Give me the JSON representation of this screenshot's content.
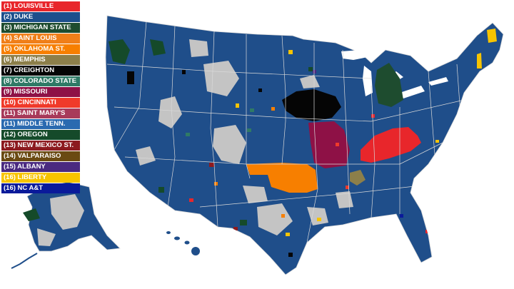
{
  "map": {
    "base_color": "#1f4e8a",
    "other_color": "#c4c4c4",
    "border_color": "#d9d9d9"
  },
  "legend": {
    "items": [
      {
        "label": "(1) LOUISVILLE",
        "color": "#e8262b",
        "text_color": "#ffffff"
      },
      {
        "label": "(2) DUKE",
        "color": "#1d4f8c",
        "text_color": "#ffffff"
      },
      {
        "label": "(3) MICHIGAN STATE",
        "color": "#1e4c2f",
        "text_color": "#ffffff"
      },
      {
        "label": "(4) SAINT LOUIS",
        "color": "#f07f19",
        "text_color": "#ffffff"
      },
      {
        "label": "(5) OKLAHOMA ST.",
        "color": "#f77f00",
        "text_color": "#ffffff"
      },
      {
        "label": "(6) MEMPHIS",
        "color": "#8c7f4a",
        "text_color": "#ffffff"
      },
      {
        "label": "(7) CREIGHTON",
        "color": "#050505",
        "text_color": "#ffffff"
      },
      {
        "label": "(8) COLORADO STATE",
        "color": "#2f7a66",
        "text_color": "#ffffff"
      },
      {
        "label": "(9) MISSOURI",
        "color": "#8e1146",
        "text_color": "#ffffff"
      },
      {
        "label": "(10) CINCINNATI",
        "color": "#f03a2a",
        "text_color": "#ffffff"
      },
      {
        "label": "(11) SAINT MARY'S",
        "color": "#a83a5a",
        "text_color": "#ffffff"
      },
      {
        "label": "(11) MIDDLE TENN.",
        "color": "#2a6ab0",
        "text_color": "#ffffff"
      },
      {
        "label": "(12) OREGON",
        "color": "#154a2a",
        "text_color": "#ffffff"
      },
      {
        "label": "(13) NEW MEXICO ST.",
        "color": "#8c1a1f",
        "text_color": "#ffffff"
      },
      {
        "label": "(14) VALPARAISO",
        "color": "#6a4a12",
        "text_color": "#ffffff"
      },
      {
        "label": "(15) ALBANY",
        "color": "#4a2a80",
        "text_color": "#ffffff"
      },
      {
        "label": "(16) LIBERTY",
        "color": "#f7c400",
        "text_color": "#ffffff"
      },
      {
        "label": "(16) NC A&T",
        "color": "#0a1a9a",
        "text_color": "#ffffff"
      }
    ]
  }
}
